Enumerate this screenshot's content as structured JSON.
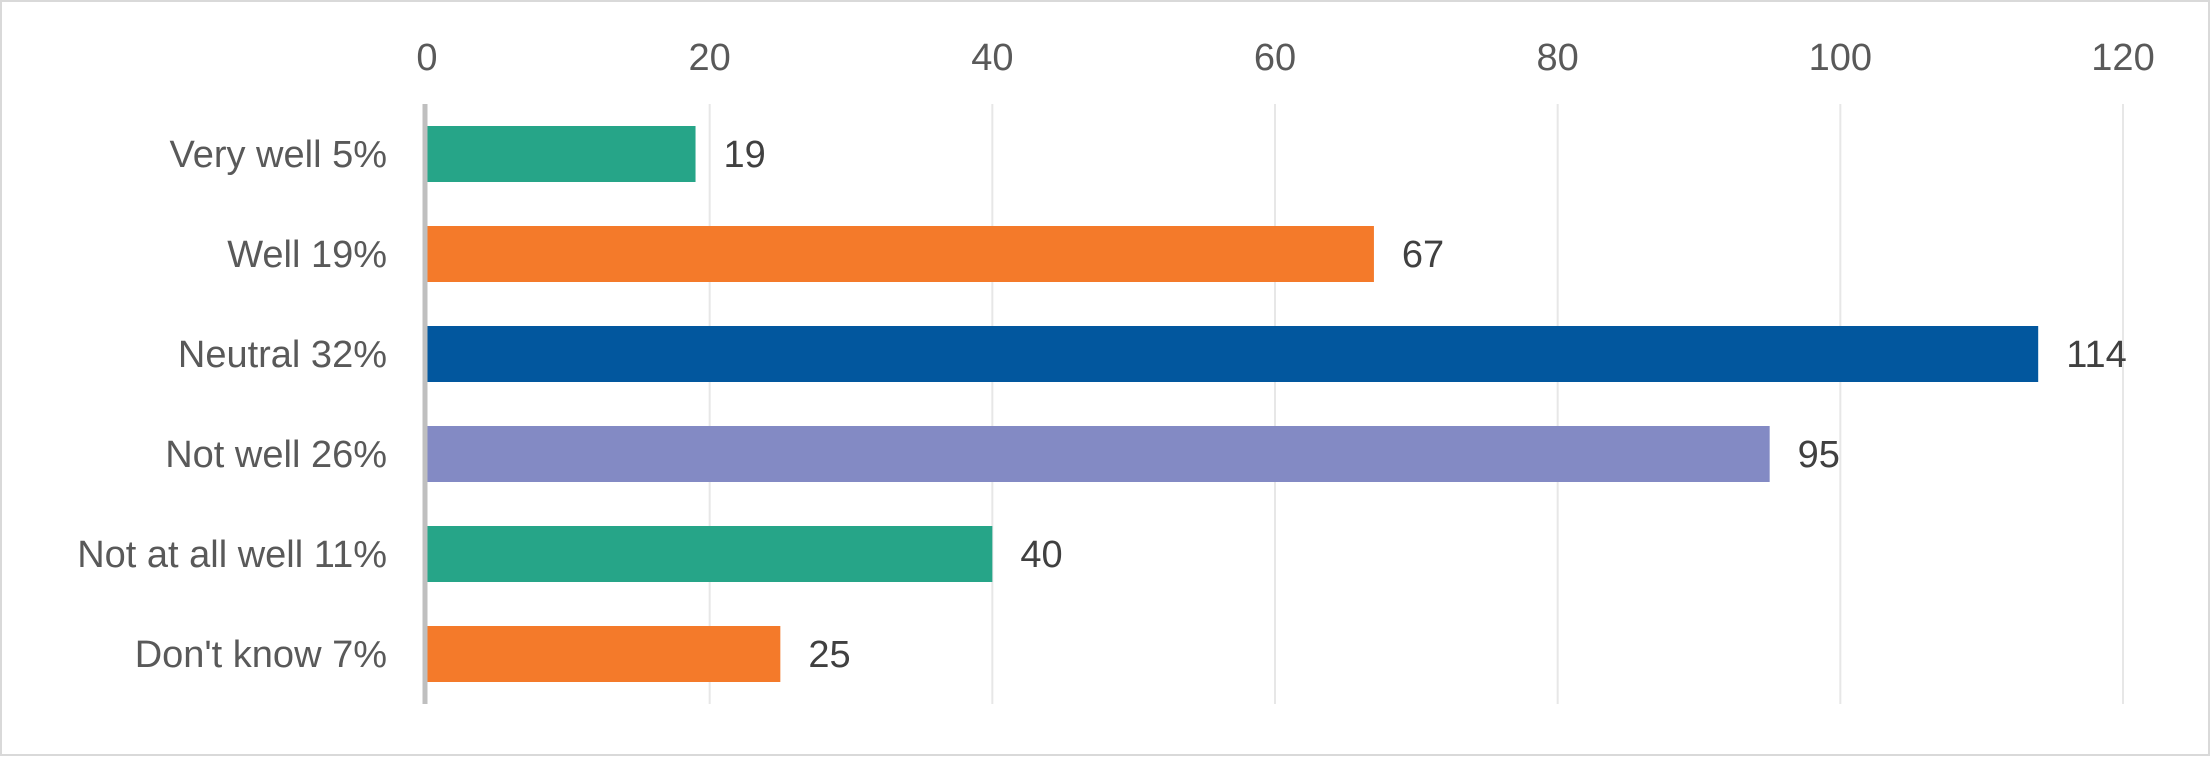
{
  "chart_data": {
    "type": "bar",
    "orientation": "horizontal",
    "title": "",
    "xlabel": "",
    "ylabel": "",
    "categories": [
      "Very well 5%",
      "Well 19%",
      "Neutral 32%",
      "Not well 26%",
      "Not at all well 11%",
      "Don't know 7%"
    ],
    "values": [
      19,
      67,
      114,
      95,
      40,
      25
    ],
    "bar_colors": [
      "#26a588",
      "#f47a2a",
      "#02579e",
      "#838ac4",
      "#26a588",
      "#f47a2a"
    ],
    "xlim": [
      0,
      120
    ],
    "xticks": [
      0,
      20,
      40,
      60,
      80,
      100,
      120
    ],
    "x_axis_position": "top",
    "grid": true,
    "legend": "none",
    "data_labels": true
  }
}
